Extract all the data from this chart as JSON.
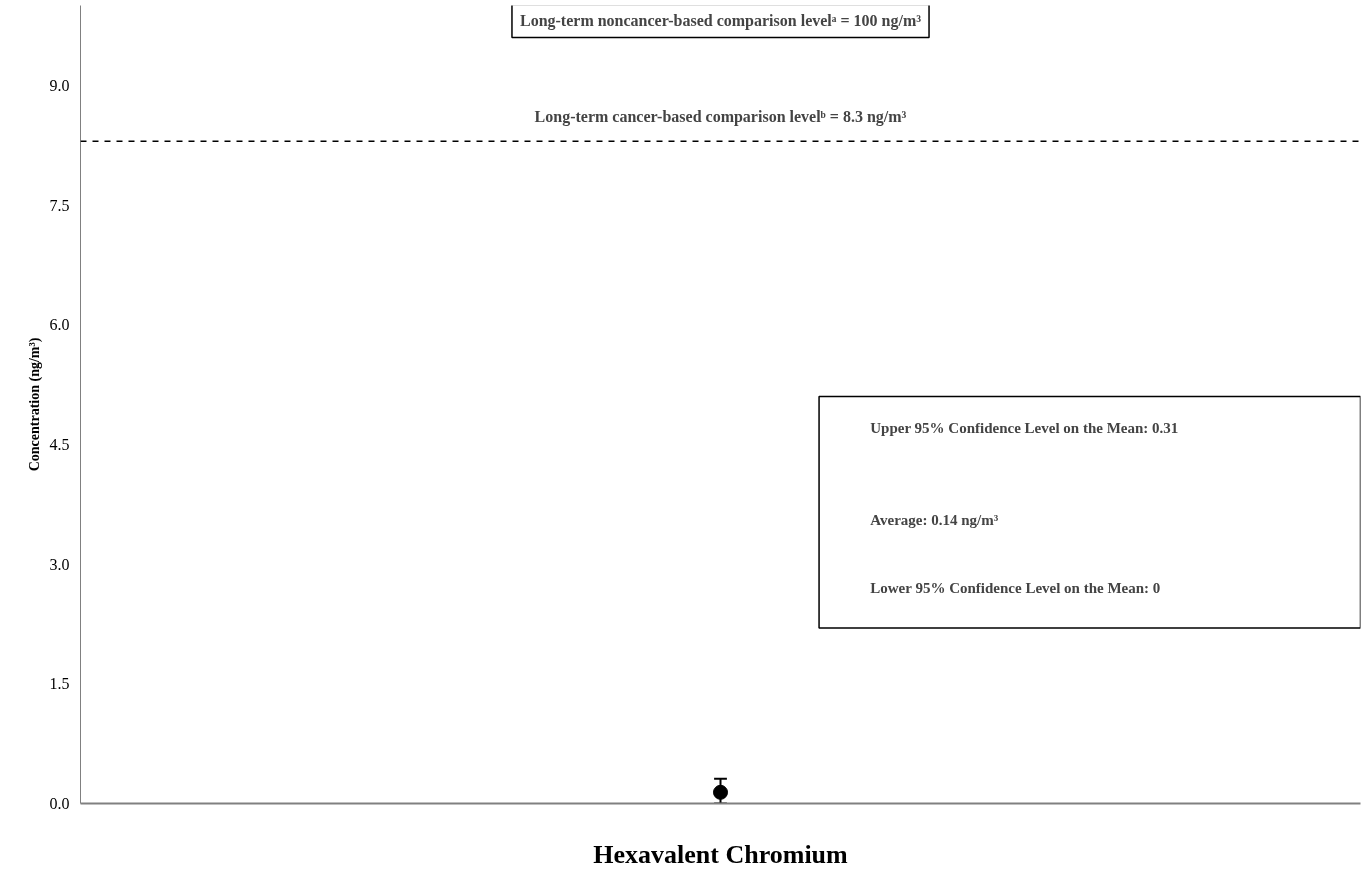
{
  "chart_data": {
    "type": "scatter",
    "xlabel": "Hexavalent Chromium",
    "ylabel": "Concentration (ng/m³)",
    "categories": [
      null
    ],
    "values": [
      0.14
    ],
    "errors": [
      [
        0,
        0.31
      ]
    ],
    "color": "#000000",
    "marker": "circle",
    "ylim": [
      0,
      10
    ],
    "yticks": [
      {
        "value": 0,
        "label": "0.0"
      },
      {
        "value": 1.5,
        "label": "1.5"
      },
      {
        "value": 3,
        "label": "3.0"
      },
      {
        "value": 4.5,
        "label": "4.5"
      },
      {
        "value": 6,
        "label": "6.0"
      },
      {
        "value": 7.5,
        "label": "7.5"
      },
      {
        "value": 9,
        "label": "9.0"
      }
    ],
    "tick_labels": "y",
    "ref_lines": [
      {
        "axis": "y",
        "value": 8.3,
        "label": "Long-term cancer-based comparison levelᵇ = 8.3 ng/m³",
        "line_style": "dashed",
        "color": "#000000"
      }
    ],
    "annotations": [
      "Long-term noncancer-based comparison levelᵃ = 100 ng/m³",
      "Upper 95% Confidence Level on the Mean: 0.31",
      "Average: 0.14 ng/m³",
      "Lower 95% Confidence Level on the Mean: 0"
    ]
  }
}
